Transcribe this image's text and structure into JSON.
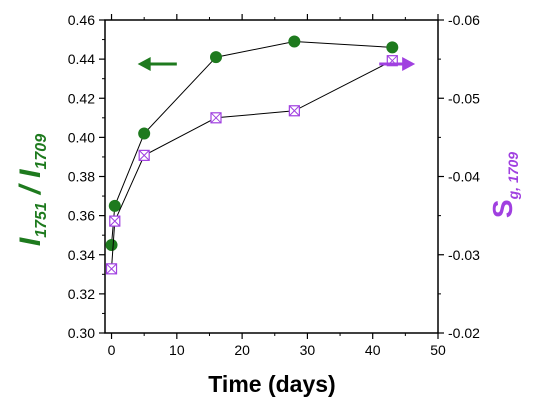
{
  "chart_data": {
    "type": "line",
    "xlabel": "Time (days)",
    "xlim": [
      -1,
      50
    ],
    "x_ticks": [
      "0",
      "10",
      "20",
      "30",
      "40",
      "50"
    ],
    "ylabel_left": {
      "base": "I",
      "sub1": "1751",
      "slash": "/",
      "base2": "I",
      "sub2": "1709"
    },
    "ylim_left": [
      0.3,
      0.46
    ],
    "y_ticks_left": [
      "0.30",
      "0.32",
      "0.34",
      "0.36",
      "0.38",
      "0.40",
      "0.42",
      "0.44",
      "0.46"
    ],
    "ylabel_right": {
      "base": "S",
      "sub": "g, 1709"
    },
    "ylim_right": [
      -0.02,
      -0.06
    ],
    "y_ticks_right": [
      "-0.02",
      "-0.03",
      "-0.04",
      "-0.05",
      "-0.06"
    ],
    "series": [
      {
        "axis": "left",
        "marker": "filled-circle",
        "color": "#1e7a1e",
        "x": [
          0,
          0.5,
          5,
          16,
          28,
          43
        ],
        "y": [
          0.345,
          0.365,
          0.402,
          0.441,
          0.449,
          0.446
        ]
      },
      {
        "axis": "right",
        "marker": "crossed-square",
        "color": "#a040e0",
        "x": [
          0,
          0.5,
          5,
          16,
          28,
          43
        ],
        "y": [
          -0.0282,
          -0.0343,
          -0.0427,
          -0.0475,
          -0.0484,
          -0.0548
        ]
      }
    ],
    "arrows": [
      {
        "points_to": "left",
        "color": "#1e7a1e"
      },
      {
        "points_to": "right",
        "color": "#a040e0"
      }
    ]
  }
}
